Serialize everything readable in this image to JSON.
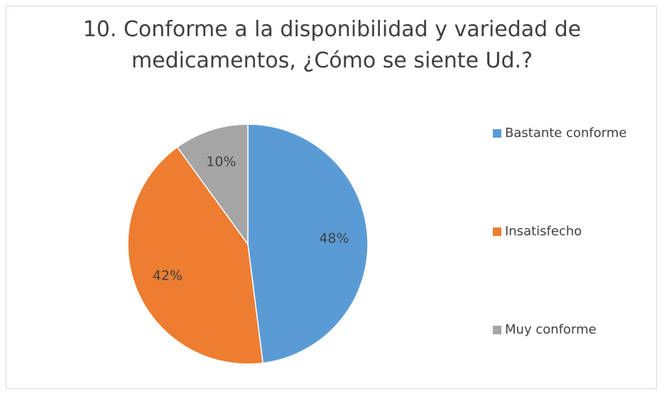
{
  "chart_data": {
    "type": "pie",
    "title": "10. Conforme a la disponibilidad y variedad de medicamentos, ¿Cómo se siente Ud.?",
    "categories": [
      "Bastante conforme",
      "Insatisfecho",
      "Muy conforme"
    ],
    "values": [
      48,
      42,
      10
    ],
    "value_labels": [
      "48%",
      "42%",
      "10%"
    ],
    "colors": [
      "#5b9bd5",
      "#ed7d31",
      "#a5a5a5"
    ],
    "legend": "right"
  }
}
